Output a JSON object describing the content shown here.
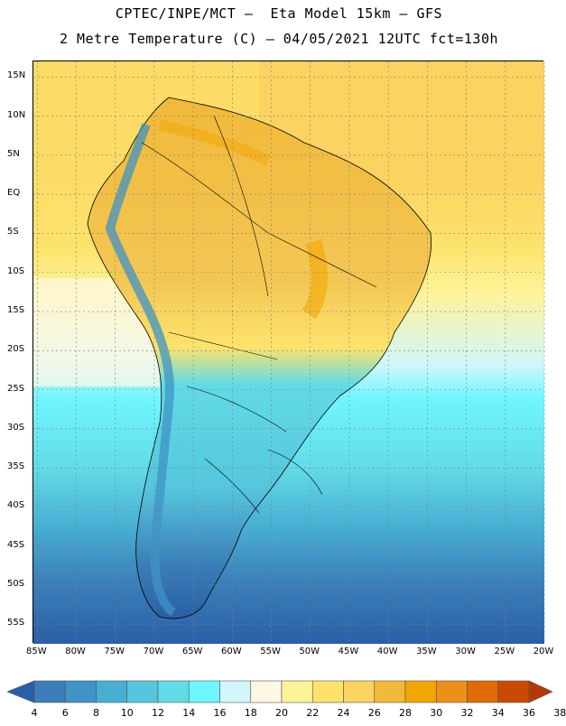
{
  "title": {
    "line1": "CPTEC/INPE/MCT –  Eta Model 15km – GFS",
    "line2": "2 Metre Temperature (C) – 04/05/2021 12UTC fct=130h"
  },
  "map": {
    "lat_labels": [
      "15N",
      "10N",
      "5N",
      "EQ",
      "5S",
      "10S",
      "15S",
      "20S",
      "25S",
      "30S",
      "35S",
      "40S",
      "45S",
      "50S",
      "55S"
    ],
    "lat_values": [
      15,
      10,
      5,
      0,
      -5,
      -10,
      -15,
      -20,
      -25,
      -30,
      -35,
      -40,
      -45,
      -50,
      -55
    ],
    "lon_labels": [
      "85W",
      "80W",
      "75W",
      "70W",
      "65W",
      "60W",
      "55W",
      "50W",
      "45W",
      "40W",
      "35W",
      "30W",
      "25W",
      "20W"
    ],
    "lon_values": [
      -85,
      -80,
      -75,
      -70,
      -65,
      -60,
      -55,
      -50,
      -45,
      -40,
      -35,
      -30,
      -25,
      -20
    ],
    "extent": {
      "lon_min": -85.5,
      "lon_max": -20,
      "lat_min": -57.5,
      "lat_max": 17
    },
    "grid": true
  },
  "colorbar": {
    "labels": [
      "4",
      "6",
      "8",
      "10",
      "12",
      "14",
      "16",
      "18",
      "20",
      "22",
      "24",
      "26",
      "28",
      "30",
      "32",
      "34",
      "36",
      "38"
    ],
    "colors": [
      "#2a5fa6",
      "#3a7db8",
      "#3f93c6",
      "#48aed3",
      "#55c6dd",
      "#62dbe6",
      "#6ff6ff",
      "#d1f6fb",
      "#fdf8e4",
      "#fdf49a",
      "#fde36d",
      "#fbd361",
      "#f1b93a",
      "#f3a603",
      "#ec8f1b",
      "#e06a06",
      "#c94a05",
      "#b33a06"
    ]
  }
}
